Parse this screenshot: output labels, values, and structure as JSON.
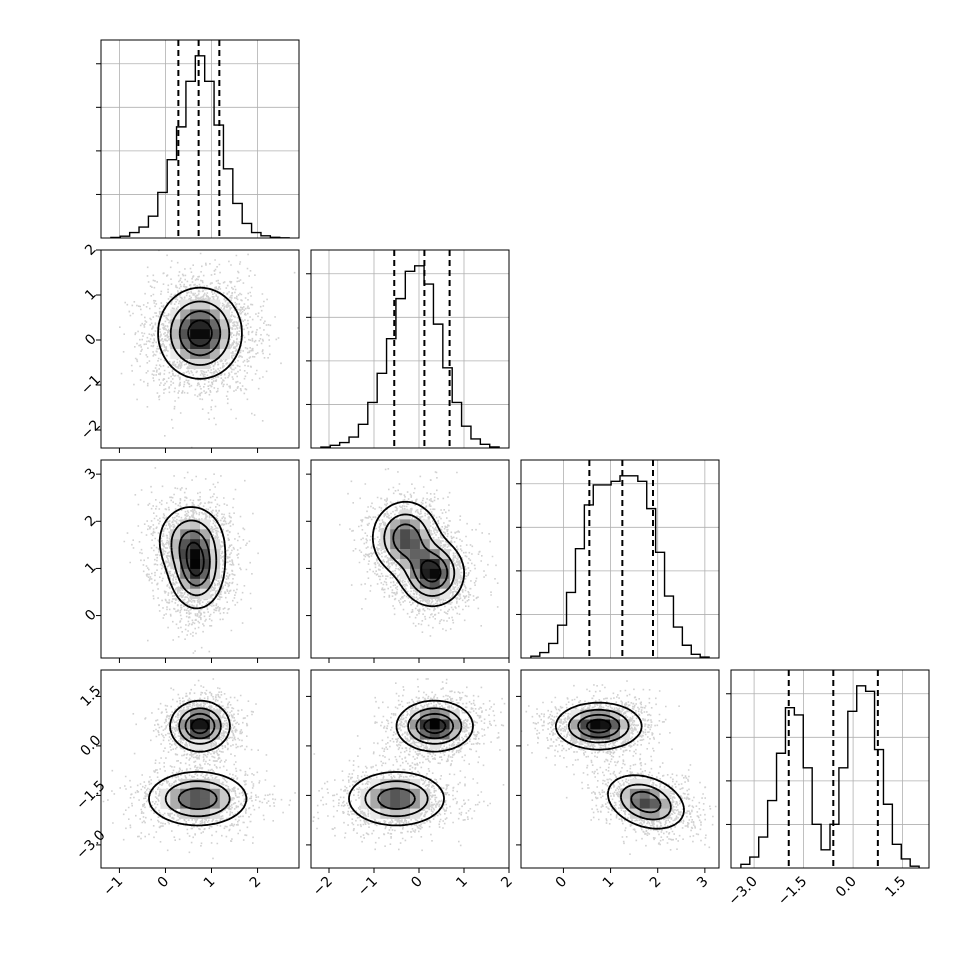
{
  "chart_data": {
    "type": "corner",
    "grid": true,
    "params": [
      {
        "range": [
          -1.4,
          2.9
        ],
        "ticks": [
          -1,
          0,
          1,
          2
        ],
        "tick_labels": [
          "−1",
          "0",
          "1",
          "2"
        ],
        "hist": [
          0.003,
          0.01,
          0.03,
          0.06,
          0.12,
          0.25,
          0.43,
          0.61,
          0.86,
          1.0,
          0.86,
          0.62,
          0.38,
          0.19,
          0.08,
          0.03,
          0.012,
          0.004,
          0.001
        ],
        "quantiles": [
          0.28,
          0.72,
          1.17
        ],
        "peaks": [
          {
            "mx": 0.72,
            "my": 0.0,
            "sx": 0.42,
            "sy": 0.0,
            "w": 1
          }
        ]
      },
      {
        "range": [
          -2.4,
          2.0
        ],
        "ticks": [
          -2,
          -1,
          0,
          1,
          2
        ],
        "tick_labels": [
          "−2",
          "−1",
          "0",
          "1",
          "2"
        ],
        "hist": [
          0.005,
          0.015,
          0.03,
          0.06,
          0.13,
          0.25,
          0.41,
          0.6,
          0.82,
          0.97,
          1.0,
          0.9,
          0.68,
          0.44,
          0.25,
          0.12,
          0.05,
          0.02,
          0.006
        ],
        "quantiles": [
          -0.55,
          0.12,
          0.68
        ],
        "peaks": []
      },
      {
        "range": [
          -0.9,
          3.3
        ],
        "ticks": [
          0,
          1,
          2,
          3
        ],
        "tick_labels": [
          "0",
          "1",
          "2",
          "3"
        ],
        "hist": [
          0.01,
          0.03,
          0.08,
          0.18,
          0.36,
          0.6,
          0.84,
          0.95,
          0.95,
          0.97,
          1.0,
          1.0,
          0.97,
          0.82,
          0.58,
          0.34,
          0.17,
          0.07,
          0.02,
          0.005
        ],
        "quantiles": [
          0.55,
          1.25,
          1.9
        ],
        "peaks": []
      },
      {
        "range": [
          -3.7,
          2.3
        ],
        "ticks": [
          -3.0,
          -1.5,
          0.0,
          1.5
        ],
        "tick_labels": [
          "−3.0",
          "−1.5",
          "0.0",
          "1.5"
        ],
        "hist": [
          0.02,
          0.06,
          0.17,
          0.37,
          0.63,
          0.88,
          0.84,
          0.55,
          0.24,
          0.1,
          0.24,
          0.55,
          0.86,
          1.0,
          0.97,
          0.65,
          0.35,
          0.13,
          0.05,
          0.01
        ],
        "quantiles": [
          -1.95,
          -0.6,
          0.75
        ],
        "peaks": []
      }
    ],
    "pairs": [
      {
        "row": 1,
        "col": 0,
        "peaks": [
          {
            "mx": 0.75,
            "my": 0.15,
            "sx": 0.45,
            "sy": 0.5,
            "rho": 0.0,
            "w": 1
          }
        ]
      },
      {
        "row": 2,
        "col": 0,
        "peaks": [
          {
            "mx": 0.68,
            "my": 0.95,
            "sx": 0.3,
            "sy": 0.42,
            "rho": 0.0,
            "w": 0.6
          },
          {
            "mx": 0.55,
            "my": 1.6,
            "sx": 0.38,
            "sy": 0.4,
            "rho": 0.0,
            "w": 0.45
          }
        ]
      },
      {
        "row": 2,
        "col": 1,
        "peaks": [
          {
            "mx": 0.3,
            "my": 0.9,
            "sx": 0.35,
            "sy": 0.35,
            "rho": 0.0,
            "w": 0.6
          },
          {
            "mx": -0.3,
            "my": 1.65,
            "sx": 0.38,
            "sy": 0.4,
            "rho": 0.0,
            "w": 0.5
          }
        ]
      },
      {
        "row": 3,
        "col": 0,
        "peaks": [
          {
            "mx": 0.75,
            "my": 0.6,
            "sx": 0.32,
            "sy": 0.38,
            "rho": 0.0,
            "w": 0.55
          },
          {
            "mx": 0.7,
            "my": -1.6,
            "sx": 0.55,
            "sy": 0.42,
            "rho": 0.0,
            "w": 0.45
          }
        ]
      },
      {
        "row": 3,
        "col": 1,
        "peaks": [
          {
            "mx": 0.35,
            "my": 0.6,
            "sx": 0.42,
            "sy": 0.38,
            "rho": 0.0,
            "w": 0.55
          },
          {
            "mx": -0.5,
            "my": -1.6,
            "sx": 0.55,
            "sy": 0.42,
            "rho": 0.0,
            "w": 0.45
          }
        ]
      },
      {
        "row": 3,
        "col": 2,
        "peaks": [
          {
            "mx": 0.75,
            "my": 0.6,
            "sx": 0.45,
            "sy": 0.35,
            "rho": 0.0,
            "w": 0.55
          },
          {
            "mx": 1.75,
            "my": -1.7,
            "sx": 0.42,
            "sy": 0.42,
            "rho": -0.3,
            "w": 0.45
          }
        ]
      }
    ]
  }
}
